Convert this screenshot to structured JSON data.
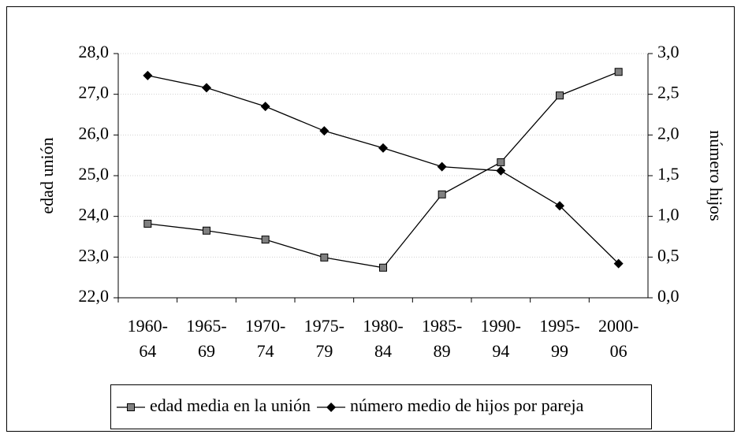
{
  "chart_data": {
    "type": "line",
    "categories": [
      "1960-64",
      "1965-69",
      "1970-74",
      "1975-79",
      "1980-84",
      "1985-89",
      "1990-94",
      "1995-99",
      "2000-06"
    ],
    "series": [
      {
        "name": "edad media en la unión",
        "color": "#808080",
        "marker": "square",
        "axis": "y",
        "values": [
          23.82,
          23.65,
          23.43,
          22.99,
          22.74,
          24.54,
          25.33,
          26.97,
          27.55
        ]
      },
      {
        "name": "número medio de hijos por pareja",
        "color": "#000000",
        "marker": "diamond",
        "axis": "y2",
        "values": [
          2.73,
          2.58,
          2.35,
          2.05,
          1.84,
          1.61,
          1.56,
          1.13,
          0.42
        ]
      }
    ],
    "ylabel": "edad unión",
    "y2label": "número hijos",
    "ylim": [
      22,
      28
    ],
    "yticks": [
      {
        "value": 22,
        "label": "22,0"
      },
      {
        "value": 23,
        "label": "23,0"
      },
      {
        "value": 24,
        "label": "24,0"
      },
      {
        "value": 25,
        "label": "25,0"
      },
      {
        "value": 26,
        "label": "26,0"
      },
      {
        "value": 27,
        "label": "27,0"
      },
      {
        "value": 28,
        "label": "28,0"
      }
    ],
    "y2lim": [
      0,
      3
    ],
    "y2ticks": [
      {
        "value": 0,
        "label": "0,0"
      },
      {
        "value": 0.5,
        "label": "0,5"
      },
      {
        "value": 1,
        "label": "1,0"
      },
      {
        "value": 1.5,
        "label": "1,5"
      },
      {
        "value": 2,
        "label": "2,0"
      },
      {
        "value": 2.5,
        "label": "2,5"
      },
      {
        "value": 3,
        "label": "3,0"
      }
    ],
    "grid": true,
    "legend": "bottom"
  }
}
